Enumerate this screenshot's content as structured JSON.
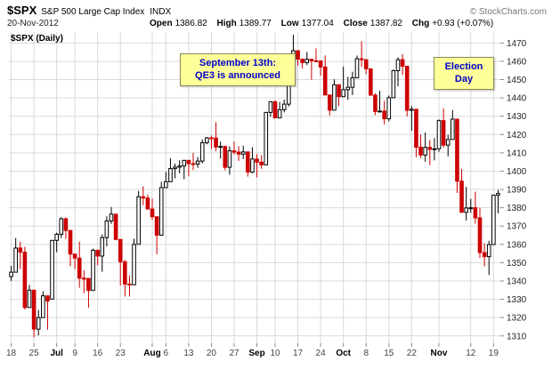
{
  "header": {
    "symbol": "$SPX",
    "name": "S&P 500 Large Cap Index",
    "exchange": "INDX",
    "copyright": "© StockCharts.com",
    "date": "20-Nov-2012",
    "quote": {
      "open_label": "Open",
      "open_value": "1386.82",
      "high_label": "High",
      "high_value": "1389.77",
      "low_label": "Low",
      "low_value": "1377.04",
      "close_label": "Close",
      "close_value": "1387.82",
      "chg_label": "Chg",
      "chg_value": "+0.93 (+0.07%)"
    }
  },
  "chart": {
    "series_label": "$SPX (Daily)",
    "annotations": [
      {
        "line1": "September 13th:",
        "line2": "QE3 is announced"
      },
      {
        "line1": "Election",
        "line2": "Day"
      }
    ]
  },
  "chart_data": {
    "type": "candlestick",
    "title": "$SPX S&P 500 Large Cap Index (Daily)",
    "date_range": [
      "18-Jun-2012",
      "20-Nov-2012"
    ],
    "ylim": [
      1306,
      1476
    ],
    "y_ticks": [
      1310,
      1320,
      1330,
      1340,
      1350,
      1360,
      1370,
      1380,
      1390,
      1400,
      1410,
      1420,
      1430,
      1440,
      1450,
      1460,
      1470
    ],
    "x_ticks": [
      {
        "label": "18",
        "index": 0
      },
      {
        "label": "25",
        "index": 5
      },
      {
        "label": "Jul",
        "index": 10,
        "bold": true
      },
      {
        "label": "9",
        "index": 14
      },
      {
        "label": "16",
        "index": 19
      },
      {
        "label": "23",
        "index": 24
      },
      {
        "label": "Aug",
        "index": 31,
        "bold": true
      },
      {
        "label": "6",
        "index": 34
      },
      {
        "label": "13",
        "index": 39
      },
      {
        "label": "20",
        "index": 44
      },
      {
        "label": "27",
        "index": 49
      },
      {
        "label": "Sep",
        "index": 54,
        "bold": true
      },
      {
        "label": "10",
        "index": 58
      },
      {
        "label": "17",
        "index": 63
      },
      {
        "label": "24",
        "index": 68
      },
      {
        "label": "Oct",
        "index": 73,
        "bold": true
      },
      {
        "label": "8",
        "index": 78
      },
      {
        "label": "15",
        "index": 83
      },
      {
        "label": "22",
        "index": 88
      },
      {
        "label": "Nov",
        "index": 94,
        "bold": true
      },
      {
        "label": "12",
        "index": 101
      },
      {
        "label": "19",
        "index": 106
      }
    ],
    "colors": {
      "up": "#000000",
      "up_fill": "#ffffff",
      "down": "#cc0000",
      "grid": "#d9d9d9",
      "axis_text": "#222222"
    },
    "columns": [
      "date",
      "open",
      "high",
      "low",
      "close"
    ],
    "candles": [
      [
        "Jun 18",
        1342.4,
        1348.3,
        1340.0,
        1344.8
      ],
      [
        "Jun 19",
        1344.8,
        1363.5,
        1344.6,
        1358.0
      ],
      [
        "Jun 20",
        1358.0,
        1361.5,
        1346.5,
        1355.7
      ],
      [
        "Jun 21",
        1355.7,
        1358.7,
        1324.4,
        1325.5
      ],
      [
        "Jun 22",
        1325.5,
        1337.8,
        1325.5,
        1335.0
      ],
      [
        "Jun 25",
        1335.0,
        1335.0,
        1309.3,
        1313.7
      ],
      [
        "Jun 26",
        1313.7,
        1324.2,
        1310.3,
        1320.0
      ],
      [
        "Jun 27",
        1320.0,
        1334.4,
        1320.0,
        1331.9
      ],
      [
        "Jun 28",
        1331.9,
        1331.9,
        1313.3,
        1329.0
      ],
      [
        "Jun 29",
        1330.1,
        1362.2,
        1330.1,
        1362.2
      ],
      [
        "Jul 2",
        1362.2,
        1366.4,
        1355.7,
        1365.5
      ],
      [
        "Jul 3",
        1365.5,
        1374.8,
        1363.5,
        1374.0
      ],
      [
        "Jul 5",
        1374.0,
        1374.7,
        1363.0,
        1367.6
      ],
      [
        "Jul 6",
        1367.6,
        1367.6,
        1348.0,
        1354.7
      ],
      [
        "Jul 9",
        1354.7,
        1354.9,
        1346.6,
        1352.5
      ],
      [
        "Jul 10",
        1352.5,
        1361.5,
        1336.3,
        1341.5
      ],
      [
        "Jul 11",
        1341.5,
        1345.9,
        1333.3,
        1341.4
      ],
      [
        "Jul 12",
        1341.4,
        1341.4,
        1325.4,
        1334.8
      ],
      [
        "Jul 13",
        1334.8,
        1357.7,
        1334.8,
        1356.8
      ],
      [
        "Jul 16",
        1356.8,
        1357.0,
        1348.5,
        1353.6
      ],
      [
        "Jul 17",
        1353.6,
        1365.4,
        1345.0,
        1363.7
      ],
      [
        "Jul 18",
        1363.7,
        1375.3,
        1358.9,
        1372.8
      ],
      [
        "Jul 19",
        1372.8,
        1380.4,
        1371.2,
        1376.5
      ],
      [
        "Jul 20",
        1376.5,
        1376.5,
        1362.2,
        1362.7
      ],
      [
        "Jul 23",
        1362.7,
        1362.7,
        1337.6,
        1350.5
      ],
      [
        "Jul 24",
        1350.5,
        1351.5,
        1331.5,
        1338.3
      ],
      [
        "Jul 25",
        1338.3,
        1343.0,
        1331.5,
        1337.9
      ],
      [
        "Jul 26",
        1337.9,
        1363.1,
        1337.9,
        1360.0
      ],
      [
        "Jul 27",
        1360.0,
        1389.2,
        1360.0,
        1386.0
      ],
      [
        "Jul 30",
        1386.0,
        1391.7,
        1381.4,
        1385.3
      ],
      [
        "Jul 31",
        1385.3,
        1387.2,
        1379.2,
        1379.3
      ],
      [
        "Aug 1",
        1379.3,
        1385.0,
        1373.4,
        1375.1
      ],
      [
        "Aug 2",
        1375.1,
        1375.1,
        1354.6,
        1365.0
      ],
      [
        "Aug 3",
        1365.0,
        1394.2,
        1365.0,
        1391.0
      ],
      [
        "Aug 6",
        1391.0,
        1399.6,
        1391.0,
        1394.2
      ],
      [
        "Aug 7",
        1394.2,
        1407.1,
        1394.2,
        1401.4
      ],
      [
        "Aug 8",
        1401.4,
        1404.1,
        1396.1,
        1402.2
      ],
      [
        "Aug 9",
        1402.2,
        1405.9,
        1398.8,
        1402.8
      ],
      [
        "Aug 10",
        1402.8,
        1405.9,
        1395.6,
        1405.9
      ],
      [
        "Aug 13",
        1405.9,
        1405.9,
        1397.3,
        1404.1
      ],
      [
        "Aug 14",
        1404.1,
        1410.0,
        1400.6,
        1403.9
      ],
      [
        "Aug 15",
        1403.9,
        1407.7,
        1401.8,
        1405.5
      ],
      [
        "Aug 16",
        1405.5,
        1417.4,
        1404.2,
        1415.5
      ],
      [
        "Aug 17",
        1415.5,
        1418.7,
        1414.7,
        1418.2
      ],
      [
        "Aug 20",
        1418.2,
        1419.5,
        1412.1,
        1418.1
      ],
      [
        "Aug 21",
        1418.1,
        1426.7,
        1410.9,
        1413.2
      ],
      [
        "Aug 22",
        1413.2,
        1416.1,
        1406.8,
        1413.5
      ],
      [
        "Aug 23",
        1413.5,
        1413.5,
        1400.5,
        1402.1
      ],
      [
        "Aug 24",
        1402.1,
        1413.5,
        1398.0,
        1411.1
      ],
      [
        "Aug 27",
        1411.1,
        1416.2,
        1409.1,
        1410.4
      ],
      [
        "Aug 28",
        1410.4,
        1413.6,
        1405.6,
        1409.3
      ],
      [
        "Aug 29",
        1409.3,
        1413.9,
        1406.6,
        1410.5
      ],
      [
        "Aug 30",
        1410.5,
        1410.5,
        1397.0,
        1399.5
      ],
      [
        "Aug 31",
        1399.5,
        1413.1,
        1398.9,
        1406.6
      ],
      [
        "Sep 4",
        1406.6,
        1409.3,
        1396.6,
        1404.9
      ],
      [
        "Sep 5",
        1404.9,
        1408.8,
        1401.3,
        1403.4
      ],
      [
        "Sep 6",
        1403.4,
        1432.1,
        1403.4,
        1432.1
      ],
      [
        "Sep 7",
        1432.1,
        1438.0,
        1429.7,
        1437.9
      ],
      [
        "Sep 10",
        1437.9,
        1438.7,
        1429.0,
        1429.1
      ],
      [
        "Sep 11",
        1429.1,
        1437.8,
        1429.1,
        1433.6
      ],
      [
        "Sep 12",
        1433.6,
        1439.1,
        1432.1,
        1436.6
      ],
      [
        "Sep 13",
        1436.6,
        1463.8,
        1435.3,
        1460.0
      ],
      [
        "Sep 14",
        1460.0,
        1474.5,
        1460.0,
        1465.8
      ],
      [
        "Sep 17",
        1465.8,
        1465.8,
        1457.6,
        1461.2
      ],
      [
        "Sep 18",
        1461.2,
        1461.5,
        1456.1,
        1459.3
      ],
      [
        "Sep 19",
        1459.3,
        1465.1,
        1457.9,
        1461.1
      ],
      [
        "Sep 20",
        1461.1,
        1461.1,
        1449.9,
        1460.3
      ],
      [
        "Sep 21",
        1460.3,
        1467.1,
        1459.5,
        1460.2
      ],
      [
        "Sep 24",
        1460.2,
        1460.2,
        1452.1,
        1456.9
      ],
      [
        "Sep 25",
        1456.9,
        1463.2,
        1441.6,
        1441.6
      ],
      [
        "Sep 26",
        1441.6,
        1441.6,
        1430.5,
        1433.3
      ],
      [
        "Sep 27",
        1433.3,
        1450.2,
        1433.3,
        1447.2
      ],
      [
        "Sep 28",
        1447.2,
        1447.2,
        1435.6,
        1440.7
      ],
      [
        "Oct 1",
        1440.7,
        1457.1,
        1440.7,
        1444.5
      ],
      [
        "Oct 2",
        1444.5,
        1451.5,
        1439.0,
        1445.8
      ],
      [
        "Oct 3",
        1445.8,
        1454.3,
        1441.6,
        1451.0
      ],
      [
        "Oct 4",
        1451.0,
        1463.1,
        1451.0,
        1461.4
      ],
      [
        "Oct 5",
        1461.4,
        1471.0,
        1456.9,
        1460.9
      ],
      [
        "Oct 8",
        1460.9,
        1460.9,
        1453.1,
        1455.9
      ],
      [
        "Oct 9",
        1455.9,
        1455.9,
        1441.2,
        1441.5
      ],
      [
        "Oct 10",
        1441.5,
        1442.5,
        1430.6,
        1432.6
      ],
      [
        "Oct 11",
        1432.6,
        1443.9,
        1432.6,
        1432.8
      ],
      [
        "Oct 12",
        1432.8,
        1438.4,
        1425.5,
        1428.6
      ],
      [
        "Oct 15",
        1428.6,
        1441.3,
        1427.2,
        1440.1
      ],
      [
        "Oct 16",
        1440.1,
        1455.5,
        1440.1,
        1454.9
      ],
      [
        "Oct 17",
        1454.9,
        1462.2,
        1446.3,
        1460.9
      ],
      [
        "Oct 18",
        1460.9,
        1464.0,
        1452.6,
        1457.3
      ],
      [
        "Oct 19",
        1457.3,
        1457.3,
        1429.9,
        1433.2
      ],
      [
        "Oct 22",
        1433.2,
        1435.5,
        1422.1,
        1433.8
      ],
      [
        "Oct 23",
        1433.8,
        1433.8,
        1407.6,
        1413.1
      ],
      [
        "Oct 24",
        1413.1,
        1420.0,
        1407.1,
        1408.8
      ],
      [
        "Oct 25",
        1408.8,
        1421.1,
        1405.1,
        1413.0
      ],
      [
        "Oct 26",
        1413.0,
        1417.1,
        1403.3,
        1411.9
      ],
      [
        "Oct 31",
        1411.9,
        1418.1,
        1405.9,
        1412.2
      ],
      [
        "Nov 1",
        1412.2,
        1428.3,
        1410.5,
        1427.6
      ],
      [
        "Nov 2",
        1427.6,
        1434.3,
        1412.7,
        1414.2
      ],
      [
        "Nov 5",
        1414.2,
        1419.9,
        1408.1,
        1417.3
      ],
      [
        "Nov 6",
        1417.3,
        1433.4,
        1417.3,
        1428.4
      ],
      [
        "Nov 7",
        1428.4,
        1428.4,
        1388.1,
        1394.5
      ],
      [
        "Nov 8",
        1394.5,
        1401.2,
        1377.5,
        1377.5
      ],
      [
        "Nov 9",
        1377.5,
        1391.4,
        1373.0,
        1379.9
      ],
      [
        "Nov 12",
        1379.9,
        1384.9,
        1377.2,
        1380.0
      ],
      [
        "Nov 13",
        1380.0,
        1388.8,
        1371.4,
        1374.5
      ],
      [
        "Nov 14",
        1374.5,
        1380.1,
        1352.5,
        1355.5
      ],
      [
        "Nov 15",
        1355.5,
        1360.6,
        1348.0,
        1353.3
      ],
      [
        "Nov 16",
        1353.3,
        1362.0,
        1343.3,
        1359.9
      ],
      [
        "Nov 19",
        1359.9,
        1386.9,
        1359.9,
        1386.9
      ],
      [
        "Nov 20",
        1386.8,
        1389.8,
        1377.0,
        1387.8
      ]
    ]
  }
}
